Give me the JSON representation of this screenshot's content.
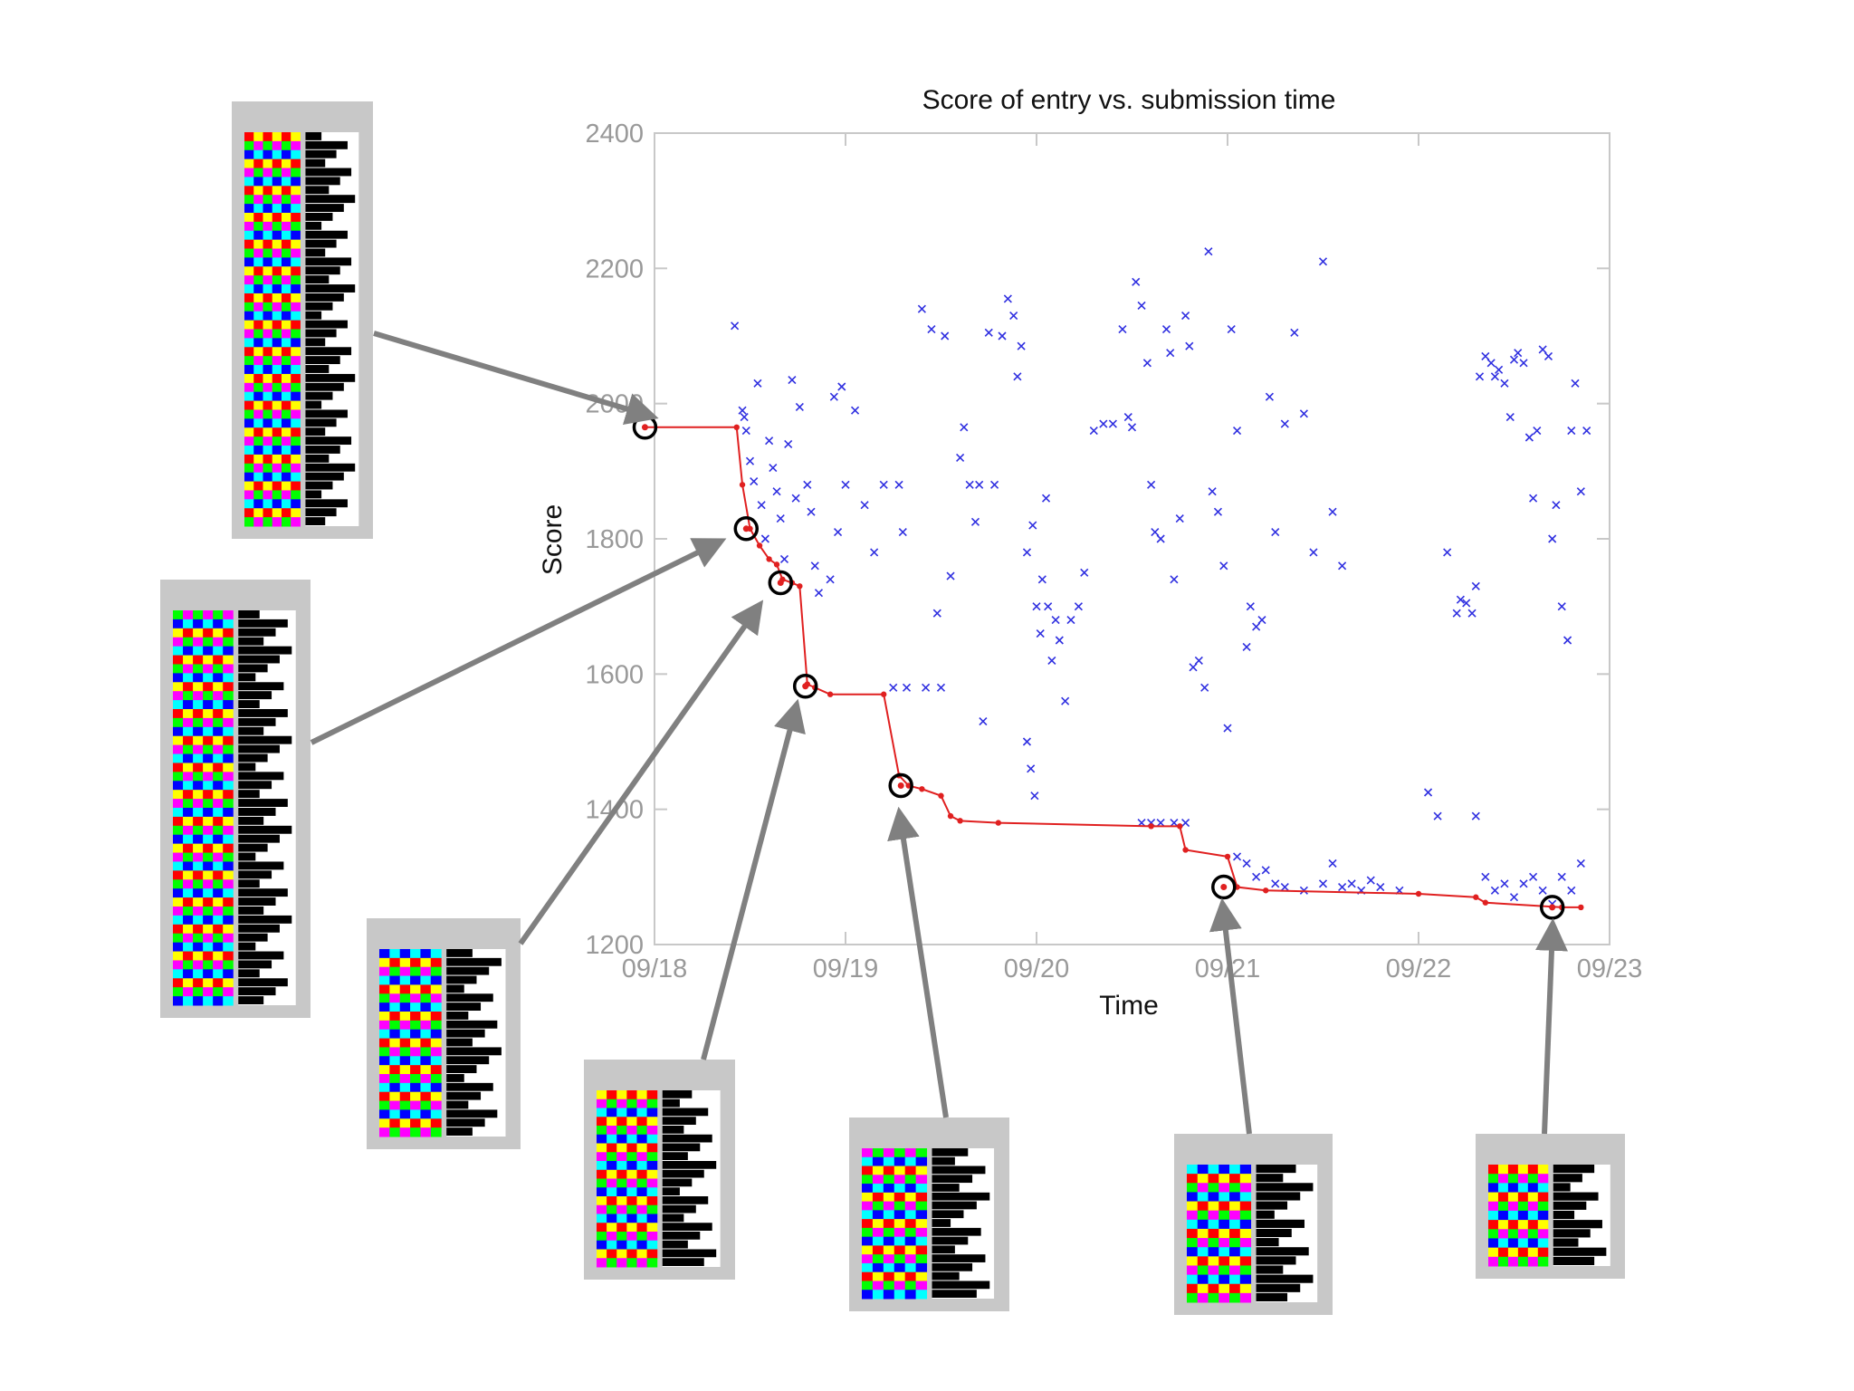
{
  "chart_data": {
    "type": "scatter",
    "title": "Score of entry vs. submission time",
    "xlabel": "Time",
    "ylabel": "Score",
    "xlim": [
      0,
      5
    ],
    "ylim": [
      1200,
      2400
    ],
    "x_ticks": [
      {
        "value": 0,
        "label": "09/18"
      },
      {
        "value": 1,
        "label": "09/19"
      },
      {
        "value": 2,
        "label": "09/20"
      },
      {
        "value": 3,
        "label": "09/21"
      },
      {
        "value": 4,
        "label": "09/22"
      },
      {
        "value": 5,
        "label": "09/23"
      }
    ],
    "y_ticks": [
      1200,
      1400,
      1600,
      1800,
      2000,
      2200,
      2400
    ],
    "colors": {
      "entries": "#2f2fe0",
      "best": "#e02020",
      "markers": "#000000",
      "axis_text": "#999999",
      "thumbnail_frame": "#c8c8c8",
      "arrow": "#808080"
    },
    "series": [
      {
        "name": "entries",
        "marker": "x",
        "points": [
          [
            0.42,
            2115
          ],
          [
            0.46,
            1990
          ],
          [
            0.47,
            1980
          ],
          [
            0.48,
            1960
          ],
          [
            0.5,
            1915
          ],
          [
            0.52,
            1885
          ],
          [
            0.54,
            2030
          ],
          [
            0.56,
            1850
          ],
          [
            0.58,
            1800
          ],
          [
            0.6,
            1945
          ],
          [
            0.62,
            1905
          ],
          [
            0.64,
            1870
          ],
          [
            0.66,
            1830
          ],
          [
            0.68,
            1770
          ],
          [
            0.7,
            1940
          ],
          [
            0.72,
            2035
          ],
          [
            0.74,
            1860
          ],
          [
            0.76,
            1995
          ],
          [
            0.8,
            1880
          ],
          [
            0.82,
            1840
          ],
          [
            0.84,
            1760
          ],
          [
            0.86,
            1720
          ],
          [
            0.92,
            1740
          ],
          [
            0.94,
            2010
          ],
          [
            0.96,
            1810
          ],
          [
            0.98,
            2025
          ],
          [
            1.0,
            1880
          ],
          [
            1.05,
            1990
          ],
          [
            1.1,
            1850
          ],
          [
            1.15,
            1780
          ],
          [
            1.2,
            1880
          ],
          [
            1.25,
            1580
          ],
          [
            1.28,
            1880
          ],
          [
            1.3,
            1810
          ],
          [
            1.32,
            1580
          ],
          [
            1.4,
            2140
          ],
          [
            1.42,
            1580
          ],
          [
            1.45,
            2110
          ],
          [
            1.48,
            1690
          ],
          [
            1.5,
            1580
          ],
          [
            1.52,
            2100
          ],
          [
            1.55,
            1745
          ],
          [
            1.6,
            1920
          ],
          [
            1.62,
            1965
          ],
          [
            1.65,
            1880
          ],
          [
            1.68,
            1825
          ],
          [
            1.7,
            1880
          ],
          [
            1.72,
            1530
          ],
          [
            1.75,
            2105
          ],
          [
            1.78,
            1880
          ],
          [
            1.82,
            2100
          ],
          [
            1.85,
            2155
          ],
          [
            1.88,
            2130
          ],
          [
            1.9,
            2040
          ],
          [
            1.92,
            2085
          ],
          [
            1.95,
            1780
          ],
          [
            1.98,
            1820
          ],
          [
            2.0,
            1700
          ],
          [
            2.02,
            1660
          ],
          [
            2.05,
            1860
          ],
          [
            2.08,
            1620
          ],
          [
            1.95,
            1500
          ],
          [
            1.97,
            1460
          ],
          [
            1.99,
            1420
          ],
          [
            2.03,
            1740
          ],
          [
            2.06,
            1700
          ],
          [
            2.1,
            1680
          ],
          [
            2.12,
            1650
          ],
          [
            2.15,
            1560
          ],
          [
            2.18,
            1680
          ],
          [
            2.22,
            1700
          ],
          [
            2.25,
            1750
          ],
          [
            2.3,
            1960
          ],
          [
            2.35,
            1970
          ],
          [
            2.4,
            1970
          ],
          [
            2.45,
            2110
          ],
          [
            2.48,
            1980
          ],
          [
            2.5,
            1965
          ],
          [
            2.52,
            2180
          ],
          [
            2.55,
            2145
          ],
          [
            2.58,
            2060
          ],
          [
            2.6,
            1880
          ],
          [
            2.62,
            1810
          ],
          [
            2.65,
            1800
          ],
          [
            2.68,
            2110
          ],
          [
            2.7,
            2075
          ],
          [
            2.72,
            1740
          ],
          [
            2.75,
            1830
          ],
          [
            2.78,
            2130
          ],
          [
            2.8,
            2085
          ],
          [
            2.82,
            1610
          ],
          [
            2.85,
            1620
          ],
          [
            2.88,
            1580
          ],
          [
            2.9,
            2225
          ],
          [
            2.92,
            1870
          ],
          [
            2.95,
            1840
          ],
          [
            2.98,
            1760
          ],
          [
            3.0,
            1520
          ],
          [
            2.55,
            1380
          ],
          [
            2.6,
            1380
          ],
          [
            2.65,
            1380
          ],
          [
            2.72,
            1380
          ],
          [
            2.78,
            1380
          ],
          [
            3.02,
            2110
          ],
          [
            3.05,
            1960
          ],
          [
            3.1,
            1640
          ],
          [
            3.12,
            1700
          ],
          [
            3.15,
            1670
          ],
          [
            3.18,
            1680
          ],
          [
            3.22,
            2010
          ],
          [
            3.25,
            1810
          ],
          [
            3.3,
            1970
          ],
          [
            3.35,
            2105
          ],
          [
            3.4,
            1985
          ],
          [
            3.45,
            1780
          ],
          [
            3.5,
            2210
          ],
          [
            3.55,
            1840
          ],
          [
            3.6,
            1760
          ],
          [
            3.05,
            1330
          ],
          [
            3.1,
            1320
          ],
          [
            3.15,
            1300
          ],
          [
            3.2,
            1310
          ],
          [
            3.25,
            1290
          ],
          [
            3.3,
            1285
          ],
          [
            3.4,
            1280
          ],
          [
            3.5,
            1290
          ],
          [
            3.55,
            1320
          ],
          [
            3.6,
            1285
          ],
          [
            3.65,
            1290
          ],
          [
            3.7,
            1280
          ],
          [
            3.75,
            1295
          ],
          [
            3.8,
            1285
          ],
          [
            3.9,
            1280
          ],
          [
            4.05,
            1425
          ],
          [
            4.1,
            1390
          ],
          [
            4.15,
            1780
          ],
          [
            4.2,
            1690
          ],
          [
            4.22,
            1710
          ],
          [
            4.25,
            1705
          ],
          [
            4.28,
            1690
          ],
          [
            4.3,
            1730
          ],
          [
            4.32,
            2040
          ],
          [
            4.35,
            2070
          ],
          [
            4.38,
            2060
          ],
          [
            4.4,
            2040
          ],
          [
            4.42,
            2050
          ],
          [
            4.45,
            2030
          ],
          [
            4.48,
            1980
          ],
          [
            4.5,
            2065
          ],
          [
            4.52,
            2075
          ],
          [
            4.55,
            2060
          ],
          [
            4.58,
            1950
          ],
          [
            4.6,
            1860
          ],
          [
            4.62,
            1960
          ],
          [
            4.65,
            2080
          ],
          [
            4.68,
            2070
          ],
          [
            4.7,
            1800
          ],
          [
            4.72,
            1850
          ],
          [
            4.75,
            1700
          ],
          [
            4.78,
            1650
          ],
          [
            4.8,
            1960
          ],
          [
            4.82,
            2030
          ],
          [
            4.85,
            1870
          ],
          [
            4.88,
            1960
          ],
          [
            4.3,
            1390
          ],
          [
            4.35,
            1300
          ],
          [
            4.4,
            1280
          ],
          [
            4.45,
            1290
          ],
          [
            4.5,
            1270
          ],
          [
            4.55,
            1290
          ],
          [
            4.6,
            1300
          ],
          [
            4.65,
            1280
          ],
          [
            4.7,
            1260
          ],
          [
            4.75,
            1300
          ],
          [
            4.8,
            1280
          ],
          [
            4.85,
            1320
          ]
        ]
      },
      {
        "name": "best score",
        "marker": "line",
        "points": [
          [
            -0.05,
            1965
          ],
          [
            0.43,
            1965
          ],
          [
            0.46,
            1880
          ],
          [
            0.5,
            1815
          ],
          [
            0.55,
            1790
          ],
          [
            0.6,
            1770
          ],
          [
            0.64,
            1762
          ],
          [
            0.67,
            1740
          ],
          [
            0.72,
            1735
          ],
          [
            0.76,
            1730
          ],
          [
            0.8,
            1585
          ],
          [
            0.84,
            1580
          ],
          [
            0.92,
            1570
          ],
          [
            1.2,
            1570
          ],
          [
            1.28,
            1450
          ],
          [
            1.33,
            1435
          ],
          [
            1.4,
            1430
          ],
          [
            1.5,
            1420
          ],
          [
            1.55,
            1390
          ],
          [
            1.6,
            1383
          ],
          [
            1.8,
            1380
          ],
          [
            2.6,
            1375
          ],
          [
            2.75,
            1375
          ],
          [
            2.78,
            1340
          ],
          [
            3.0,
            1330
          ],
          [
            3.05,
            1285
          ],
          [
            3.2,
            1280
          ],
          [
            4.0,
            1275
          ],
          [
            4.3,
            1270
          ],
          [
            4.35,
            1262
          ],
          [
            4.75,
            1255
          ],
          [
            4.85,
            1255
          ]
        ]
      },
      {
        "name": "selected entries",
        "marker": "o",
        "points": [
          [
            -0.05,
            1965
          ],
          [
            0.48,
            1815
          ],
          [
            0.66,
            1735
          ],
          [
            0.79,
            1582
          ],
          [
            1.29,
            1435
          ],
          [
            2.98,
            1285
          ],
          [
            4.7,
            1255
          ]
        ]
      }
    ],
    "thumbnails": [
      {
        "name": "thumbnail-1",
        "target": [
          -0.06,
          1985
        ]
      },
      {
        "name": "thumbnail-2",
        "target": [
          0.3,
          1790
        ]
      },
      {
        "name": "thumbnail-3",
        "target": [
          0.52,
          1690
        ]
      },
      {
        "name": "thumbnail-4",
        "target": [
          0.73,
          1540
        ]
      },
      {
        "name": "thumbnail-5",
        "target": [
          1.29,
          1380
        ]
      },
      {
        "name": "thumbnail-6",
        "target": [
          2.98,
          1245
        ]
      },
      {
        "name": "thumbnail-7",
        "target": [
          4.7,
          1215
        ]
      }
    ]
  }
}
